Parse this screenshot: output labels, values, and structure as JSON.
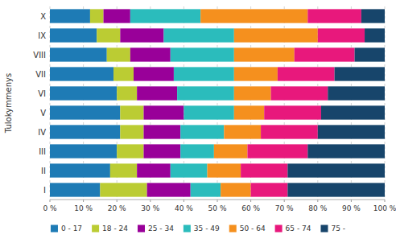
{
  "chart_data": {
    "type": "bar",
    "orientation": "horizontal",
    "stacked": true,
    "ylabel": "Tulokymmenys",
    "categories": [
      "I",
      "II",
      "III",
      "IV",
      "V",
      "VI",
      "VII",
      "VIII",
      "IX",
      "X"
    ],
    "series": [
      {
        "name": "0 - 17",
        "color": "#1E7BB5",
        "values": [
          15,
          18,
          20,
          21,
          21,
          20,
          19,
          17,
          14,
          12
        ]
      },
      {
        "name": "18 - 24",
        "color": "#BBCC33",
        "values": [
          14,
          8,
          8,
          7,
          7,
          6,
          6,
          7,
          7,
          4
        ]
      },
      {
        "name": "25 - 34",
        "color": "#990099",
        "values": [
          13,
          10,
          11,
          11,
          12,
          12,
          12,
          12,
          13,
          8
        ]
      },
      {
        "name": "35 - 49",
        "color": "#2BBCBC",
        "values": [
          9,
          11,
          10,
          13,
          15,
          17,
          18,
          19,
          21,
          21
        ]
      },
      {
        "name": "50 - 64",
        "color": "#F5901E",
        "values": [
          9,
          10,
          10,
          11,
          9,
          11,
          13,
          18,
          25,
          32
        ]
      },
      {
        "name": "65 - 74",
        "color": "#E8187C",
        "values": [
          11,
          14,
          18,
          17,
          17,
          17,
          17,
          18,
          14,
          16
        ]
      },
      {
        "name": "75 -",
        "color": "#17456B",
        "values": [
          29,
          29,
          23,
          20,
          19,
          17,
          15,
          9,
          6,
          7
        ]
      }
    ],
    "xlim": [
      0,
      100
    ],
    "xticks": [
      {
        "value": 0,
        "label": "0 %"
      },
      {
        "value": 10,
        "label": "10 %"
      },
      {
        "value": 20,
        "label": "20 %"
      },
      {
        "value": 30,
        "label": "30 %"
      },
      {
        "value": 40,
        "label": "40 %"
      },
      {
        "value": 50,
        "label": "50 %"
      },
      {
        "value": 60,
        "label": "60 %"
      },
      {
        "value": 70,
        "label": "70 %"
      },
      {
        "value": 80,
        "label": "80 %"
      },
      {
        "value": 90,
        "label": "90 %"
      },
      {
        "value": 100,
        "label": "100 %"
      }
    ],
    "grid": true,
    "legend": "bottom"
  }
}
